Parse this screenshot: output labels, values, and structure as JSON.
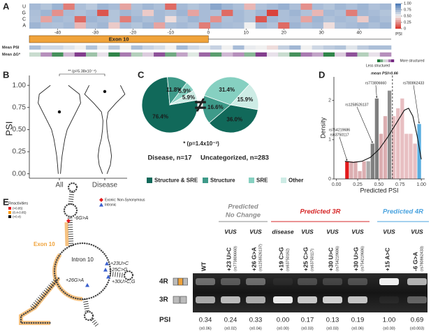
{
  "panels": [
    "A",
    "B",
    "C",
    "D",
    "E"
  ],
  "chart_data": [
    {
      "type": "heatmap",
      "rows": [
        "U",
        "G",
        "C",
        "A"
      ],
      "x": [
        -46,
        -43,
        -40,
        -37,
        -34,
        -31,
        -28,
        -25,
        -22,
        -19,
        -16,
        -13,
        -10,
        -7,
        -4,
        -1,
        2,
        5,
        8,
        11,
        14,
        17,
        20,
        23,
        26,
        29,
        32,
        35,
        38,
        41,
        44,
        47
      ],
      "values": [
        [
          0.72,
          0.68,
          0.75,
          0.2,
          0.7,
          0.66,
          0.74,
          0.71,
          0.3,
          0.69,
          0.73,
          0.7,
          0.15,
          0.72,
          0.68,
          0.71,
          0.8,
          0.74,
          0.7,
          0.35,
          0.69,
          0.72,
          0.76,
          0.7,
          0.25,
          0.71,
          0.68,
          0.73,
          0.7,
          0.74,
          0.69,
          0.72
        ],
        [
          0.7,
          0.74,
          0.25,
          0.71,
          0.69,
          0.72,
          0.1,
          0.68,
          0.73,
          0.7,
          0.4,
          0.72,
          0.69,
          0.74,
          0.3,
          0.71,
          0.7,
          0.15,
          0.72,
          0.68,
          0.73,
          0.05,
          0.7,
          0.74,
          0.69,
          0.35,
          0.72,
          0.7,
          0.2,
          0.73,
          0.71,
          0.68
        ],
        [
          0.69,
          0.3,
          0.72,
          0.7,
          0.15,
          0.74,
          0.71,
          0.68,
          0.2,
          0.73,
          0.7,
          0.72,
          0.45,
          0.69,
          0.74,
          0.71,
          0.25,
          0.7,
          0.72,
          0.68,
          0.1,
          0.73,
          0.7,
          0.71,
          0.3,
          0.74,
          0.69,
          0.72,
          0.7,
          0.4,
          0.73,
          0.7
        ],
        [
          0.74,
          0.7,
          0.69,
          0.72,
          0.35,
          0.7,
          0.73,
          0.4,
          0.71,
          0.68,
          0.74,
          0.3,
          0.7,
          0.72,
          0.69,
          0.2,
          0.73,
          0.71,
          0.7,
          0.5,
          0.72,
          0.69,
          0.15,
          0.74,
          0.7,
          0.72,
          0.45,
          0.69,
          0.71,
          0.73,
          0.7,
          0.74
        ]
      ],
      "xlim": [
        -47.5,
        48.5
      ],
      "xticks": [
        -40,
        -30,
        -20,
        -10,
        0,
        10,
        20,
        30,
        40
      ],
      "zlim": [
        0,
        1
      ],
      "colorbar": {
        "label": "PSI",
        "ticks": [
          {
            "value": 1,
            "label": "1.00"
          },
          {
            "value": 0.75,
            "label": "0.75"
          },
          {
            "value": 0.5,
            "label": "0.50"
          },
          {
            "value": 0.25,
            "label": "0.25"
          },
          0
        ]
      },
      "exon": {
        "label": "Exon 10",
        "range": [
          -47.5,
          0
        ],
        "color": "#f0a33a"
      },
      "strips": [
        {
          "label": "Mean PSI",
          "zlim": [
            0,
            1
          ],
          "values": [
            0.7,
            0.6,
            0.6,
            0.55,
            0.5,
            0.68,
            0.52,
            0.66,
            0.5,
            0.7,
            0.62,
            0.58,
            0.5,
            0.72,
            0.6,
            0.55,
            0.62,
            0.5,
            0.71,
            0.52,
            0.5,
            0.45,
            0.63,
            0.73,
            0.5,
            0.6,
            0.65,
            0.68,
            0.55,
            0.65,
            0.7,
            0.7
          ]
        },
        {
          "label": "Mean ΔG*",
          "zlim": [
            -1,
            1
          ],
          "legend": [
            "Less structured",
            "More structured"
          ],
          "values": [
            -0.2,
            0.5,
            -0.8,
            0.3,
            0.9,
            -0.4,
            0.1,
            -0.9,
            0.6,
            -0.3,
            0.2,
            0.8,
            -0.6,
            0.4,
            -0.1,
            0.7,
            -0.7,
            0.3,
            0.5,
            -0.5,
            0.9,
            0.1,
            -0.2,
            -0.8,
            0.6,
            0.4,
            -0.9,
            0.2,
            0.8,
            -0.3,
            0.1,
            0.5
          ]
        }
      ]
    },
    {
      "type": "violin",
      "ylabel": "PSI",
      "categories": [
        "All",
        "Disease"
      ],
      "ylim": [
        -0.05,
        1.08
      ],
      "yticks": [
        {
          "value": 0,
          "label": "0.00"
        },
        {
          "value": 0.25,
          "label": "0.25"
        },
        {
          "value": 0.5,
          "label": "0.50"
        },
        {
          "value": 0.75,
          "label": "0.75"
        },
        {
          "value": 1,
          "label": "1.00"
        }
      ],
      "density_y": [
        0,
        0.1,
        0.2,
        0.3,
        0.4,
        0.5,
        0.6,
        0.7,
        0.8,
        0.9,
        1.0
      ],
      "density": [
        [
          0.05,
          0.08,
          0.12,
          0.18,
          0.25,
          0.35,
          0.55,
          0.75,
          0.95,
          0.9,
          0.4
        ],
        [
          0.1,
          0.25,
          0.3,
          0.25,
          0.15,
          0.1,
          0.08,
          0.15,
          0.5,
          0.9,
          0.7
        ]
      ],
      "medians": [
        0.7,
        0.93
      ],
      "annotation": "** (p=5.38x10⁻⁴)"
    },
    {
      "type": "pie",
      "title": "Disease, n=17",
      "categories": [
        "Structure & SRE",
        "Structure",
        "SRE",
        "Other"
      ],
      "values": [
        76.4,
        11.8,
        5.9,
        5.9
      ],
      "value_labels": [
        "76.4%",
        "11.8%",
        "5.9%",
        "5.9%"
      ],
      "colors": [
        "#11695a",
        "#3e9a89",
        "#86d0c1",
        "#cdece5"
      ],
      "startangle": 80
    },
    {
      "type": "pie",
      "title": "Uncategorized, n=283",
      "categories": [
        "Structure & SRE",
        "Structure",
        "SRE",
        "Other"
      ],
      "values": [
        36.0,
        16.6,
        31.4,
        15.9
      ],
      "value_labels": [
        "36.0%",
        "16.6%",
        "31.4%",
        "15.9%"
      ],
      "colors": [
        "#11695a",
        "#3e9a89",
        "#86d0c1",
        "#cdece5"
      ],
      "startangle": 100
    },
    {
      "type": "histogram",
      "xlabel": "Predicted PSI",
      "ylabel": "Density",
      "bins": [
        0.1,
        0.15,
        0.2,
        0.25,
        0.3,
        0.35,
        0.4,
        0.45,
        0.5,
        0.55,
        0.6,
        0.65,
        0.7,
        0.75,
        0.8,
        0.85,
        0.9,
        0.95,
        1.0
      ],
      "counts": [
        0.45,
        0.45,
        0.45,
        0.2,
        0.45,
        0.45,
        0.9,
        2.05,
        1.15,
        1.6,
        2.25,
        1.6,
        1.8,
        2.05,
        1.15,
        1.15,
        0.9,
        1.4
      ],
      "bar_colors": [
        "#e31a1c",
        "#dcaeb1",
        "#dcaeb1",
        "#dcaeb1",
        "#dcaeb1",
        "#a9a9a9",
        "#7f7f7f",
        "#7f7f7f",
        "#dcaeb1",
        "#dcaeb1",
        "#8f8f8f",
        "#e8bfc2",
        "#e8bfc2",
        "#e8bfc2",
        "#e8bfc2",
        "#e8bfc2",
        "#e8bfc2",
        "#5aaee0"
      ],
      "xlim": [
        -0.03,
        1.04
      ],
      "xticks": [
        {
          "value": 0,
          "label": "0.00"
        },
        {
          "value": 0.25,
          "label": "0.25"
        },
        {
          "value": 0.5,
          "label": "0.50"
        },
        {
          "value": 0.75,
          "label": "0.75"
        },
        {
          "value": 1,
          "label": "1.00"
        }
      ],
      "ylim": [
        0,
        2.6
      ],
      "yticks": [
        0,
        1,
        2
      ],
      "kde": {
        "x": [
          0.1,
          0.2,
          0.3,
          0.4,
          0.5,
          0.6,
          0.7,
          0.8,
          0.85,
          0.9,
          0.95,
          1.0
        ],
        "y": [
          0.45,
          0.42,
          0.45,
          0.55,
          0.75,
          1.05,
          1.4,
          1.75,
          1.8,
          1.6,
          1.1,
          0.5
        ]
      },
      "mean": {
        "value": 0.66,
        "label": "mean PSI=0.66"
      },
      "annotations": [
        {
          "label": "rs773806660",
          "x": 0.475
        },
        {
          "label": "rs1258526137",
          "x": 0.425
        },
        {
          "label": "rs754219686",
          "x": 0.125
        },
        {
          "label": "rs63750117",
          "x": 0.125
        },
        {
          "label": "rs780862433",
          "x": 0.975
        }
      ]
    }
  ],
  "panel_c": {
    "relation": "≠",
    "annotation": "* (p=1.4x10⁻³)"
  },
  "structure": {
    "reactivity_title": "Reactivities",
    "reactivity_levels": [
      {
        "label": "(>0.85)",
        "color": "#e41a1c"
      },
      {
        "label": "(0.4-0.85)",
        "color": "#ff9900"
      },
      {
        "label": "(<0.4)",
        "color": "#000000"
      }
    ],
    "variant_types": [
      {
        "label": "Exonic: Non-Synonymous",
        "color": "#e41a1c"
      },
      {
        "label": "Intronic",
        "color": "#3a5fcd"
      }
    ],
    "exon_label": "Exon 10",
    "intron_label": "Intron 10",
    "variants": [
      "-6G>A",
      "+23U>C",
      "+25C>G",
      "+30U>C,G",
      "+26G>A"
    ]
  },
  "gel": {
    "row_labels": [
      "4R",
      "3R"
    ],
    "psi_label": "PSI",
    "wt": {
      "mutation": "WT",
      "psi": 0.34,
      "psi_label": "0.34",
      "error_label": "(±0.06)"
    },
    "groups": [
      {
        "label_lines": [
          "Predicted",
          "No Change"
        ],
        "color": "#8c8c8c",
        "lanes": [
          {
            "class": "VUS",
            "mutation": "+23 U>C",
            "rs": "(rs773806660)",
            "psi": 0.24,
            "psi_label": "0.24",
            "error_label": "(±0.02)"
          },
          {
            "class": "VUS",
            "mutation": "+26 G>A",
            "rs": "(rs1258526137)",
            "psi": 0.33,
            "psi_label": "0.33",
            "error_label": "(±0.04)"
          }
        ]
      },
      {
        "label_lines": [
          "Predicted 3R"
        ],
        "color": "#d62728",
        "lanes": [
          {
            "class": "disease",
            "mutation": "+19 C>G",
            "rs": "(rs63750162)",
            "psi": 0,
            "psi_label": "0.00",
            "error_label": "(±0.00)"
          },
          {
            "class": "VUS",
            "mutation": "+25 C>G",
            "rs": "(rs63750117)",
            "psi": 0.17,
            "psi_label": "0.17",
            "error_label": "(±0.03)"
          },
          {
            "class": "VUS",
            "mutation": "+30 U>C",
            "rs": "(rs754219686)",
            "psi": 0.13,
            "psi_label": "0.13",
            "error_label": "(±0.03)"
          },
          {
            "class": "VUS",
            "mutation": "+30 U>G",
            "rs": "(rs754219686)",
            "psi": 0.19,
            "psi_label": "0.19",
            "error_label": "(±0.06)"
          }
        ]
      },
      {
        "label_lines": [
          "Predicted 4R"
        ],
        "color": "#4aa3df",
        "lanes": [
          {
            "class": "VUS",
            "mutation": "+15 A>C",
            "psi": 1,
            "psi_label": "1.00",
            "error_label": "(±0.00)"
          },
          {
            "class": "VUS",
            "mutation": "-6 G>A",
            "rs": "(rs780862433)",
            "psi": 0.69,
            "psi_label": "0.69",
            "error_label": "(±0.003)"
          }
        ]
      }
    ]
  }
}
